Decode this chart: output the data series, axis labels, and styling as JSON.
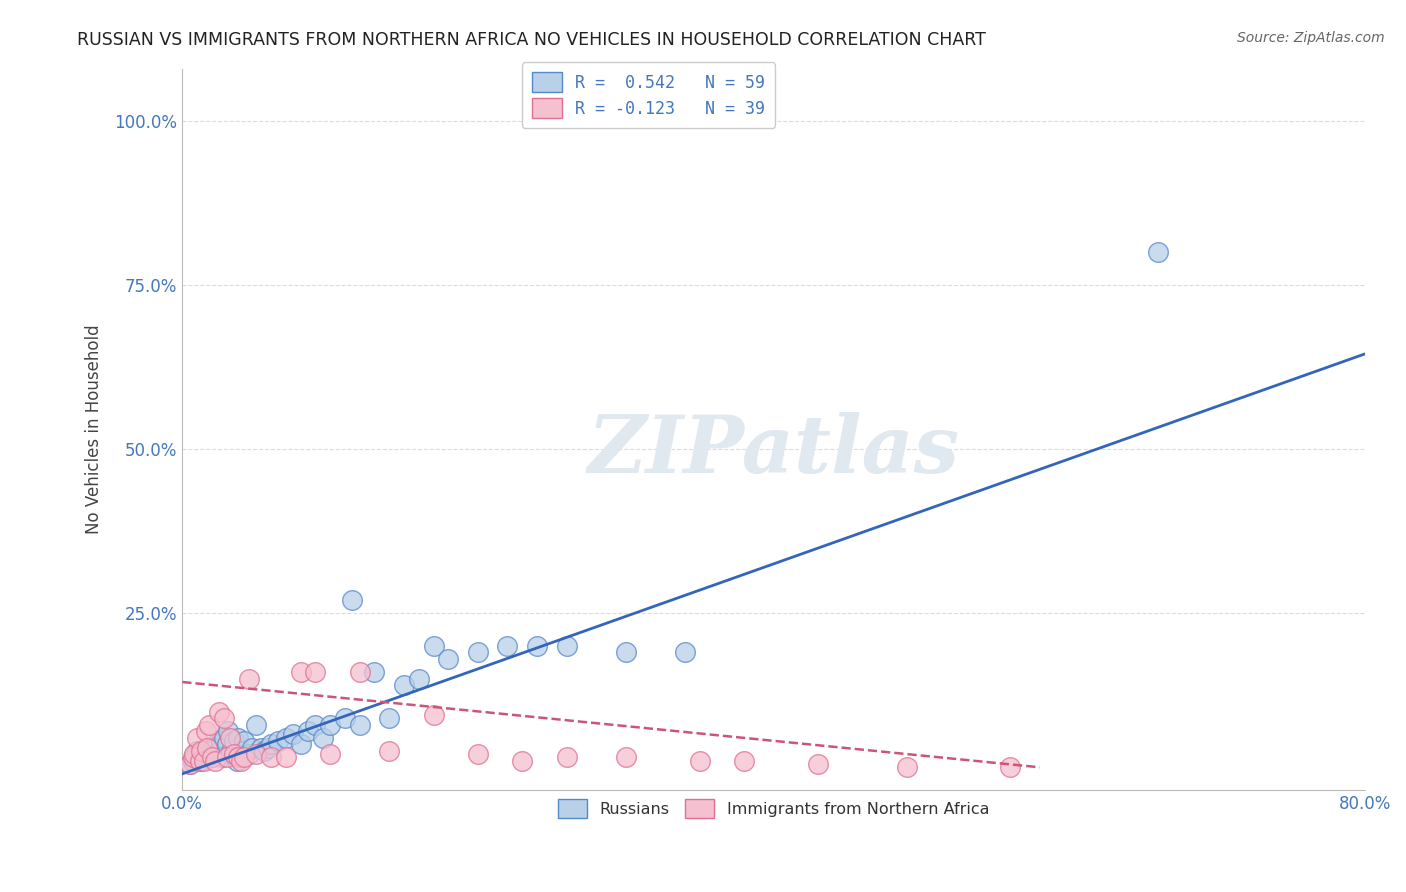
{
  "title": "RUSSIAN VS IMMIGRANTS FROM NORTHERN AFRICA NO VEHICLES IN HOUSEHOLD CORRELATION CHART",
  "source": "Source: ZipAtlas.com",
  "ylabel": "No Vehicles in Household",
  "xlim": [
    0.0,
    0.8
  ],
  "ylim": [
    -0.02,
    1.08
  ],
  "xticks": [
    0.0,
    0.8
  ],
  "xticklabels": [
    "0.0%",
    "80.0%"
  ],
  "yticks": [
    0.25,
    0.5,
    0.75,
    1.0
  ],
  "yticklabels": [
    "25.0%",
    "50.0%",
    "75.0%",
    "100.0%"
  ],
  "russian_color": "#b8d0e8",
  "immigrant_color": "#f5c0d0",
  "russian_edge": "#5588cc",
  "immigrant_edge": "#e07090",
  "line_russian_color": "#3366bb",
  "line_immigrant_color": "#cc5577",
  "background_color": "#ffffff",
  "grid_color": "#cccccc",
  "russians_x": [
    0.005,
    0.007,
    0.008,
    0.01,
    0.01,
    0.012,
    0.013,
    0.015,
    0.016,
    0.017,
    0.018,
    0.02,
    0.021,
    0.022,
    0.023,
    0.025,
    0.026,
    0.027,
    0.028,
    0.03,
    0.031,
    0.032,
    0.033,
    0.035,
    0.037,
    0.038,
    0.04,
    0.042,
    0.045,
    0.047,
    0.05,
    0.053,
    0.055,
    0.058,
    0.06,
    0.065,
    0.07,
    0.075,
    0.08,
    0.085,
    0.09,
    0.095,
    0.1,
    0.11,
    0.115,
    0.12,
    0.13,
    0.14,
    0.15,
    0.16,
    0.17,
    0.18,
    0.2,
    0.22,
    0.24,
    0.26,
    0.3,
    0.34,
    0.66
  ],
  "russians_y": [
    0.02,
    0.025,
    0.03,
    0.035,
    0.04,
    0.025,
    0.035,
    0.04,
    0.03,
    0.035,
    0.045,
    0.04,
    0.03,
    0.035,
    0.05,
    0.04,
    0.055,
    0.03,
    0.06,
    0.05,
    0.07,
    0.035,
    0.04,
    0.055,
    0.025,
    0.06,
    0.04,
    0.055,
    0.035,
    0.045,
    0.08,
    0.045,
    0.04,
    0.045,
    0.05,
    0.055,
    0.06,
    0.065,
    0.05,
    0.07,
    0.08,
    0.06,
    0.08,
    0.09,
    0.27,
    0.08,
    0.16,
    0.09,
    0.14,
    0.15,
    0.2,
    0.18,
    0.19,
    0.2,
    0.2,
    0.2,
    0.19,
    0.19,
    0.8
  ],
  "immigrants_x": [
    0.005,
    0.007,
    0.008,
    0.01,
    0.012,
    0.013,
    0.015,
    0.016,
    0.017,
    0.018,
    0.02,
    0.022,
    0.025,
    0.028,
    0.03,
    0.032,
    0.035,
    0.038,
    0.04,
    0.042,
    0.045,
    0.05,
    0.06,
    0.07,
    0.08,
    0.09,
    0.1,
    0.12,
    0.14,
    0.17,
    0.2,
    0.23,
    0.26,
    0.3,
    0.35,
    0.38,
    0.43,
    0.49,
    0.56
  ],
  "immigrants_y": [
    0.02,
    0.03,
    0.035,
    0.06,
    0.025,
    0.04,
    0.025,
    0.07,
    0.045,
    0.08,
    0.03,
    0.025,
    0.1,
    0.09,
    0.03,
    0.06,
    0.035,
    0.03,
    0.025,
    0.03,
    0.15,
    0.035,
    0.03,
    0.03,
    0.16,
    0.16,
    0.035,
    0.16,
    0.04,
    0.095,
    0.035,
    0.025,
    0.03,
    0.03,
    0.025,
    0.025,
    0.02,
    0.015,
    0.015
  ],
  "watermark_text": "ZIPatlas"
}
